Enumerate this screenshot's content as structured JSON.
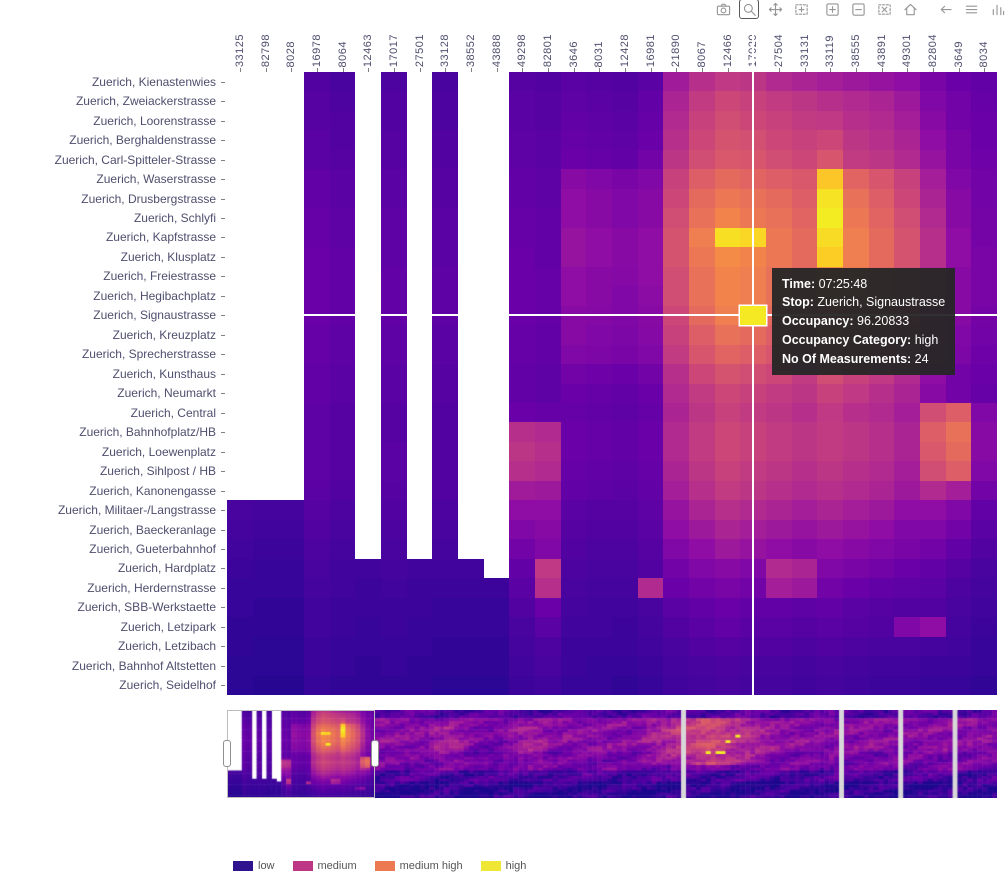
{
  "chart_data": {
    "type": "heatmap",
    "title": "",
    "xlabel": "",
    "ylabel": "",
    "x_label_rotation": -90,
    "x": [
      "33125",
      "82798",
      "8028",
      "16978",
      "8064",
      "12463",
      "17017",
      "27501",
      "33128",
      "38552",
      "43888",
      "49298",
      "82801",
      "3646",
      "8031",
      "12428",
      "16981",
      "21890",
      "8067",
      "12466",
      "17020",
      "27504",
      "33131",
      "33119",
      "38555",
      "43891",
      "49301",
      "82804",
      "3649",
      "8034"
    ],
    "y": [
      "Zuerich, Kienastenwies",
      "Zuerich, Zweiackerstrasse",
      "Zuerich, Loorenstrasse",
      "Zuerich, Berghaldenstrasse",
      "Zuerich, Carl-Spitteler-Strasse",
      "Zuerich, Waserstrasse",
      "Zuerich, Drusbergstrasse",
      "Zuerich, Schlyfi",
      "Zuerich, Kapfstrasse",
      "Zuerich, Klusplatz",
      "Zuerich, Freiestrasse",
      "Zuerich, Hegibachplatz",
      "Zuerich, Signaustrasse",
      "Zuerich, Kreuzplatz",
      "Zuerich, Sprecherstrasse",
      "Zuerich, Kunsthaus",
      "Zuerich, Neumarkt",
      "Zuerich, Central",
      "Zuerich, Bahnhofplatz/HB",
      "Zuerich, Loewenplatz",
      "Zuerich, Sihlpost / HB",
      "Zuerich, Kanonengasse",
      "Zuerich, Militaer-/Langstrasse",
      "Zuerich, Baeckeranlage",
      "Zuerich, Gueterbahnhof",
      "Zuerich, Hardplatz",
      "Zuerich, Herdernstrasse",
      "Zuerich, SBB-Werkstaette",
      "Zuerich, Letzipark",
      "Zuerich, Letzibach",
      "Zuerich, Bahnhof Altstetten",
      "Zuerich, Seidelhof"
    ],
    "value_field": "occupancy_percent",
    "value_range": [
      0,
      100
    ],
    "missing_value": null,
    "colormap": "plasma",
    "values": [
      [
        null,
        null,
        null,
        14,
        12,
        null,
        13,
        null,
        12,
        null,
        null,
        15,
        14,
        16,
        15,
        14,
        16,
        35,
        42,
        45,
        44,
        40,
        38,
        36,
        34,
        32,
        30,
        24,
        20,
        18
      ],
      [
        null,
        null,
        null,
        15,
        13,
        null,
        14,
        null,
        13,
        null,
        null,
        16,
        15,
        17,
        16,
        15,
        18,
        38,
        46,
        50,
        48,
        46,
        44,
        42,
        40,
        38,
        34,
        26,
        22,
        19
      ],
      [
        null,
        null,
        null,
        15,
        14,
        null,
        14,
        null,
        13,
        null,
        null,
        16,
        15,
        18,
        17,
        16,
        19,
        40,
        48,
        52,
        50,
        48,
        46,
        45,
        42,
        40,
        36,
        28,
        22,
        20
      ],
      [
        null,
        null,
        null,
        16,
        14,
        null,
        15,
        null,
        14,
        null,
        null,
        17,
        16,
        19,
        18,
        17,
        20,
        42,
        50,
        54,
        53,
        50,
        48,
        50,
        44,
        42,
        38,
        30,
        24,
        20
      ],
      [
        null,
        null,
        null,
        16,
        15,
        null,
        15,
        null,
        14,
        null,
        null,
        17,
        16,
        20,
        19,
        18,
        22,
        44,
        52,
        56,
        55,
        52,
        50,
        55,
        46,
        44,
        40,
        32,
        24,
        21
      ],
      [
        null,
        null,
        null,
        18,
        16,
        null,
        16,
        null,
        15,
        null,
        null,
        18,
        17,
        28,
        26,
        24,
        26,
        48,
        58,
        62,
        60,
        58,
        56,
        88,
        60,
        55,
        48,
        36,
        26,
        22
      ],
      [
        null,
        null,
        null,
        18,
        16,
        null,
        16,
        null,
        15,
        null,
        null,
        18,
        17,
        30,
        28,
        26,
        28,
        50,
        62,
        66,
        64,
        62,
        58,
        95,
        64,
        58,
        50,
        38,
        28,
        22
      ],
      [
        null,
        null,
        null,
        19,
        17,
        null,
        17,
        null,
        16,
        null,
        null,
        19,
        18,
        30,
        28,
        26,
        28,
        52,
        64,
        70,
        66,
        64,
        60,
        97,
        66,
        60,
        52,
        40,
        28,
        23
      ],
      [
        null,
        null,
        null,
        19,
        17,
        null,
        17,
        null,
        16,
        null,
        null,
        19,
        18,
        32,
        30,
        28,
        30,
        54,
        68,
        94,
        92,
        66,
        62,
        93,
        68,
        62,
        54,
        42,
        30,
        23
      ],
      [
        null,
        null,
        null,
        20,
        18,
        null,
        17,
        null,
        16,
        null,
        null,
        20,
        18,
        32,
        30,
        28,
        30,
        54,
        66,
        72,
        70,
        66,
        62,
        90,
        68,
        62,
        54,
        42,
        30,
        24
      ],
      [
        null,
        null,
        null,
        20,
        18,
        null,
        18,
        null,
        17,
        null,
        null,
        20,
        19,
        30,
        28,
        27,
        30,
        52,
        64,
        70,
        68,
        64,
        60,
        72,
        66,
        60,
        52,
        40,
        28,
        24
      ],
      [
        null,
        null,
        null,
        20,
        18,
        null,
        18,
        null,
        17,
        null,
        null,
        20,
        19,
        30,
        28,
        26,
        29,
        52,
        64,
        70,
        68,
        64,
        60,
        70,
        64,
        58,
        52,
        40,
        28,
        24
      ],
      [
        null,
        null,
        null,
        20,
        18,
        null,
        18,
        null,
        17,
        null,
        null,
        20,
        19,
        28,
        27,
        26,
        28,
        50,
        62,
        68,
        96.20833,
        62,
        58,
        68,
        62,
        56,
        50,
        38,
        28,
        23
      ],
      [
        null,
        null,
        null,
        19,
        17,
        null,
        17,
        null,
        16,
        null,
        null,
        19,
        18,
        28,
        26,
        25,
        27,
        48,
        58,
        64,
        62,
        58,
        55,
        64,
        58,
        54,
        48,
        36,
        26,
        22
      ],
      [
        null,
        null,
        null,
        19,
        17,
        null,
        17,
        null,
        16,
        null,
        null,
        19,
        18,
        26,
        25,
        24,
        26,
        46,
        55,
        60,
        58,
        55,
        52,
        60,
        55,
        50,
        45,
        34,
        25,
        21
      ],
      [
        null,
        null,
        null,
        18,
        16,
        null,
        16,
        null,
        15,
        null,
        null,
        18,
        17,
        22,
        21,
        20,
        22,
        42,
        50,
        54,
        52,
        50,
        46,
        52,
        48,
        45,
        40,
        30,
        22,
        20
      ],
      [
        null,
        null,
        null,
        18,
        16,
        null,
        16,
        null,
        15,
        null,
        null,
        18,
        17,
        20,
        19,
        18,
        20,
        40,
        46,
        50,
        48,
        46,
        44,
        48,
        45,
        42,
        38,
        28,
        22,
        19
      ],
      [
        null,
        null,
        null,
        17,
        15,
        null,
        15,
        null,
        14,
        null,
        null,
        20,
        19,
        19,
        18,
        17,
        19,
        38,
        44,
        48,
        46,
        44,
        42,
        45,
        42,
        40,
        36,
        52,
        58,
        26
      ],
      [
        null,
        null,
        null,
        17,
        15,
        null,
        15,
        null,
        14,
        null,
        null,
        42,
        40,
        20,
        19,
        18,
        20,
        40,
        46,
        50,
        48,
        46,
        44,
        46,
        44,
        42,
        38,
        58,
        64,
        28
      ],
      [
        null,
        null,
        null,
        17,
        15,
        null,
        16,
        null,
        14,
        null,
        null,
        44,
        42,
        20,
        19,
        18,
        20,
        40,
        46,
        50,
        48,
        46,
        44,
        46,
        44,
        42,
        38,
        56,
        62,
        28
      ],
      [
        null,
        null,
        null,
        17,
        15,
        null,
        16,
        null,
        14,
        null,
        null,
        42,
        40,
        19,
        18,
        17,
        19,
        38,
        44,
        48,
        46,
        44,
        42,
        44,
        42,
        40,
        36,
        52,
        58,
        26
      ],
      [
        null,
        null,
        null,
        16,
        14,
        null,
        15,
        null,
        14,
        null,
        null,
        35,
        34,
        18,
        17,
        16,
        18,
        36,
        42,
        46,
        44,
        42,
        40,
        42,
        40,
        38,
        34,
        40,
        36,
        22
      ],
      [
        12,
        11,
        11,
        15,
        13,
        null,
        14,
        null,
        13,
        null,
        null,
        30,
        30,
        16,
        15,
        15,
        17,
        32,
        38,
        42,
        40,
        38,
        36,
        38,
        36,
        34,
        30,
        30,
        26,
        18
      ],
      [
        11,
        10,
        10,
        14,
        12,
        null,
        13,
        null,
        12,
        null,
        null,
        26,
        28,
        15,
        14,
        14,
        16,
        30,
        34,
        38,
        36,
        34,
        32,
        34,
        32,
        30,
        26,
        26,
        22,
        16
      ],
      [
        10,
        9,
        9,
        13,
        11,
        null,
        12,
        null,
        11,
        null,
        null,
        22,
        26,
        14,
        13,
        13,
        15,
        26,
        30,
        34,
        32,
        30,
        28,
        30,
        28,
        26,
        24,
        22,
        18,
        14
      ],
      [
        9,
        8,
        8,
        12,
        10,
        10,
        11,
        10,
        10,
        10,
        null,
        18,
        45,
        13,
        12,
        12,
        14,
        22,
        26,
        28,
        26,
        40,
        38,
        26,
        24,
        22,
        20,
        18,
        15,
        12
      ],
      [
        8,
        8,
        8,
        11,
        10,
        9,
        10,
        9,
        9,
        9,
        9,
        16,
        42,
        12,
        11,
        11,
        40,
        20,
        22,
        24,
        22,
        36,
        34,
        22,
        20,
        18,
        17,
        16,
        13,
        11
      ],
      [
        8,
        7,
        7,
        10,
        9,
        9,
        9,
        9,
        8,
        8,
        8,
        14,
        20,
        11,
        10,
        10,
        12,
        16,
        18,
        20,
        18,
        18,
        17,
        18,
        16,
        15,
        14,
        14,
        12,
        10
      ],
      [
        7,
        7,
        7,
        10,
        9,
        8,
        9,
        8,
        8,
        8,
        8,
        12,
        16,
        10,
        10,
        9,
        11,
        14,
        16,
        18,
        16,
        16,
        15,
        16,
        15,
        14,
        26,
        30,
        11,
        9
      ],
      [
        7,
        6,
        6,
        9,
        8,
        8,
        8,
        8,
        7,
        7,
        7,
        11,
        13,
        9,
        9,
        9,
        10,
        12,
        14,
        15,
        14,
        14,
        13,
        14,
        13,
        12,
        12,
        11,
        10,
        8
      ],
      [
        6,
        6,
        6,
        9,
        8,
        7,
        8,
        7,
        7,
        7,
        7,
        10,
        12,
        9,
        8,
        8,
        9,
        11,
        12,
        13,
        12,
        12,
        11,
        12,
        11,
        10,
        10,
        9,
        9,
        8
      ],
      [
        6,
        5,
        5,
        8,
        7,
        7,
        7,
        7,
        6,
        6,
        6,
        9,
        10,
        8,
        8,
        7,
        8,
        10,
        11,
        12,
        11,
        11,
        10,
        11,
        10,
        9,
        9,
        8,
        8,
        7
      ]
    ]
  },
  "toolbar": {
    "tools": [
      {
        "name": "save",
        "icon": "camera",
        "active": false
      },
      {
        "name": "zoom",
        "icon": "magnifier",
        "active": true
      },
      {
        "name": "pan",
        "icon": "move",
        "active": false
      },
      {
        "name": "box-zoom",
        "icon": "box-zoom",
        "active": false
      },
      {
        "name": "zoom-in",
        "icon": "zoom-in",
        "active": false
      },
      {
        "name": "zoom-out",
        "icon": "zoom-out",
        "active": false
      },
      {
        "name": "box-select",
        "icon": "box-select",
        "active": false
      },
      {
        "name": "reset",
        "icon": "home",
        "active": false
      },
      {
        "name": "undo",
        "icon": "arrow-left",
        "active": false
      },
      {
        "name": "menu",
        "icon": "hamburger",
        "active": false
      },
      {
        "name": "stats",
        "icon": "bars",
        "active": false
      }
    ]
  },
  "crosshair": {
    "col_index": 20,
    "row_index": 12,
    "x_value": "17020",
    "y_value": "Zuerich, Signaustrasse",
    "color": "#ffffff"
  },
  "tooltip": {
    "rows": [
      {
        "label": "Time",
        "value": "07:25:48"
      },
      {
        "label": "Stop",
        "value": "Zuerich, Signaustrasse"
      },
      {
        "label": "Occupancy",
        "value": "96.20833"
      },
      {
        "label": "Occupancy Category",
        "value": "high"
      },
      {
        "label": "No Of Measurements",
        "value": "24"
      }
    ]
  },
  "legend": {
    "items": [
      {
        "label": "low",
        "color": "#2f128e"
      },
      {
        "label": "medium",
        "color": "#bd3786"
      },
      {
        "label": "medium high",
        "color": "#ed7953"
      },
      {
        "label": "high",
        "color": "#f0e636"
      }
    ]
  },
  "minimap": {
    "total_columns": 156,
    "rows": 32,
    "selection_start_col": 0,
    "selection_end_col": 30,
    "gap_columns": [
      92,
      124,
      136,
      147
    ],
    "gap_color": "#d8d8d8"
  },
  "colors": {
    "background": "#ffffff",
    "missing": "#ffffff",
    "axis_label": "#4e4e6e",
    "tick": "#808080",
    "tooltip_bg": "#262626",
    "tooltip_text": "#ffffff"
  }
}
